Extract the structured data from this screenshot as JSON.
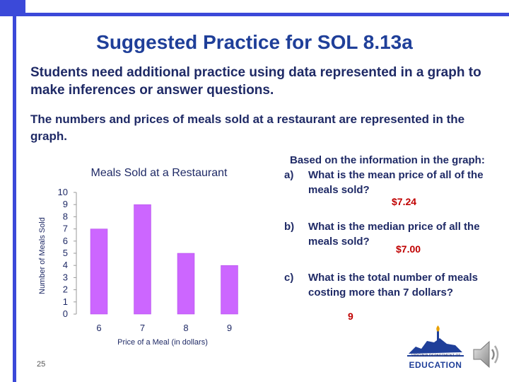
{
  "slide": {
    "title": "Suggested Practice for SOL 8.13a",
    "intro": "Students need additional practice using data represented in a graph to make inferences or answer questions.",
    "context": "The numbers and prices of meals sold at a restaurant are represented in the graph.",
    "page_number": "25"
  },
  "chart_data": {
    "type": "bar",
    "title": "Meals Sold at a Restaurant",
    "xlabel": "Price of a Meal (in dollars)",
    "ylabel": "Number of Meals Sold",
    "categories": [
      "6",
      "7",
      "8",
      "9"
    ],
    "values": [
      7,
      9,
      5,
      4
    ],
    "ylim": [
      0,
      10
    ],
    "yticks": [
      "0",
      "1",
      "2",
      "3",
      "4",
      "5",
      "6",
      "7",
      "8",
      "9",
      "10"
    ],
    "bar_color": "#cc66ff",
    "grid": false,
    "legend": "none"
  },
  "questions": {
    "intro": "Based on the information in the graph:",
    "items": [
      {
        "letter": "a)",
        "text": "What is the mean price of all of the meals sold?",
        "answer": "$7.24"
      },
      {
        "letter": "b)",
        "text": "What is the median price of all the meals sold?",
        "answer": "$7.00"
      },
      {
        "letter": "c)",
        "text": "What is the total number of meals costing more than 7 dollars?",
        "answer": "9"
      }
    ]
  },
  "logo": {
    "department": "VIRGINIA DEPARTMENT OF",
    "word": "EDUCATION",
    "icon": "virginia-doe-logo"
  },
  "audio": {
    "icon": "speaker-icon"
  },
  "colors": {
    "frame": "#3b49d9",
    "title": "#1f3f99",
    "answer": "#c00000"
  }
}
